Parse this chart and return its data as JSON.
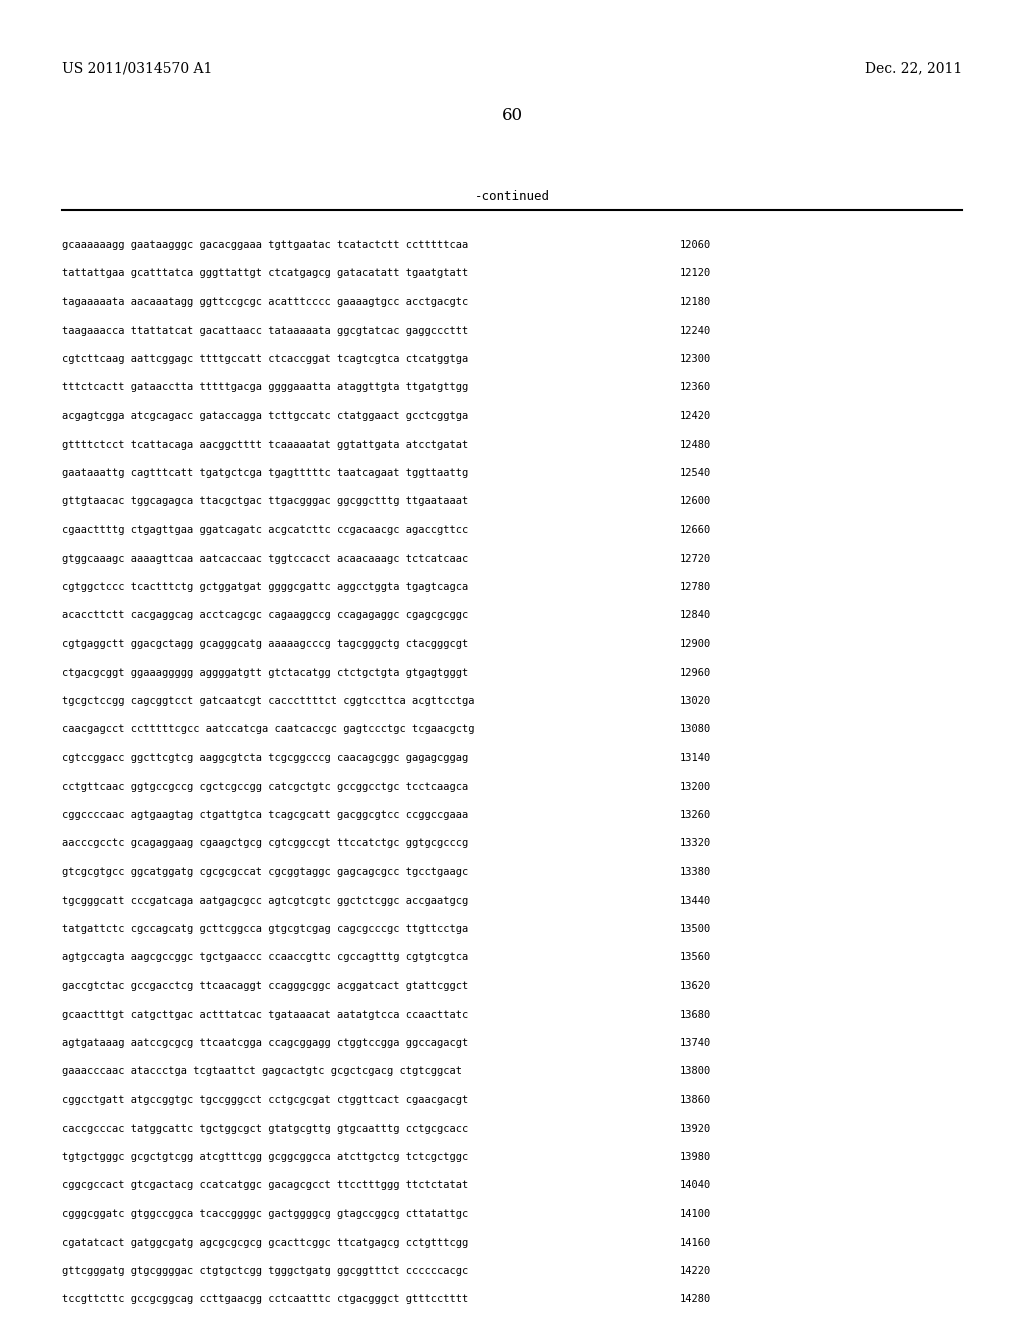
{
  "header_left": "US 2011/0314570 A1",
  "header_right": "Dec. 22, 2011",
  "page_number": "60",
  "continued_label": "-continued",
  "background_color": "#ffffff",
  "text_color": "#000000",
  "sequence_lines": [
    [
      "gcaaaaaagg gaataagggc gacacggaaa tgttgaatac tcatactctt cctttttcaa",
      "12060"
    ],
    [
      "tattattgaa gcatttatca gggttattgt ctcatgagcg gatacatatt tgaatgtatt",
      "12120"
    ],
    [
      "tagaaaaata aacaaatagg ggttccgcgc acatttcccc gaaaagtgcc acctgacgtc",
      "12180"
    ],
    [
      "taagaaacca ttattatcat gacattaacc tataaaaata ggcgtatcac gaggcccttt",
      "12240"
    ],
    [
      "cgtcttcaag aattcggagc ttttgccatt ctcaccggat tcagtcgtca ctcatggtga",
      "12300"
    ],
    [
      "tttctcactt gataacctta tttttgacga ggggaaatta ataggttgta ttgatgttgg",
      "12360"
    ],
    [
      "acgagtcgga atcgcagacc gataccagga tcttgccatc ctatggaact gcctcggtga",
      "12420"
    ],
    [
      "gttttctcct tcattacaga aacggctttt tcaaaaatat ggtattgata atcctgatat",
      "12480"
    ],
    [
      "gaataaattg cagtttcatt tgatgctcga tgagtttttc taatcagaat tggttaattg",
      "12540"
    ],
    [
      "gttgtaacac tggcagagca ttacgctgac ttgacgggac ggcggctttg ttgaataaat",
      "12600"
    ],
    [
      "cgaacttttg ctgagttgaa ggatcagatc acgcatcttc ccgacaacgc agaccgttcc",
      "12660"
    ],
    [
      "gtggcaaagc aaaagttcaa aatcaccaac tggtccacct acaacaaagc tctcatcaac",
      "12720"
    ],
    [
      "cgtggctccc tcactttctg gctggatgat ggggcgattc aggcctggta tgagtcagca",
      "12780"
    ],
    [
      "acaccttctt cacgaggcag acctcagcgc cagaaggccg ccagagaggc cgagcgcggc",
      "12840"
    ],
    [
      "cgtgaggctt ggacgctagg gcagggcatg aaaaagcccg tagcgggctg ctacgggcgt",
      "12900"
    ],
    [
      "ctgacgcggt ggaaaggggg aggggatgtt gtctacatgg ctctgctgta gtgagtgggt",
      "12960"
    ],
    [
      "tgcgctccgg cagcggtcct gatcaatcgt cacccttttct cggtccttca acgttcctga",
      "13020"
    ],
    [
      "caacgagcct cctttttcgcc aatccatcga caatcaccgc gagtccctgc tcgaacgctg",
      "13080"
    ],
    [
      "cgtccggacc ggcttcgtcg aaggcgtcta tcgcggcccg caacagcggc gagagcggag",
      "13140"
    ],
    [
      "cctgttcaac ggtgccgccg cgctcgccgg catcgctgtc gccggcctgc tcctcaagca",
      "13200"
    ],
    [
      "cggccccaac agtgaagtag ctgattgtca tcagcgcatt gacggcgtcc ccggccgaaa",
      "13260"
    ],
    [
      "aacccgcctc gcagaggaag cgaagctgcg cgtcggccgt ttccatctgc ggtgcgcccg",
      "13320"
    ],
    [
      "gtcgcgtgcc ggcatggatg cgcgcgccat cgcggtaggc gagcagcgcc tgcctgaagc",
      "13380"
    ],
    [
      "tgcgggcatt cccgatcaga aatgagcgcc agtcgtcgtc ggctctcggc accgaatgcg",
      "13440"
    ],
    [
      "tatgattctc cgccagcatg gcttcggcca gtgcgtcgag cagcgcccgc ttgttcctga",
      "13500"
    ],
    [
      "agtgccagta aagcgccggc tgctgaaccc ccaaccgttc cgccagtttg cgtgtcgtca",
      "13560"
    ],
    [
      "gaccgtctac gccgacctcg ttcaacaggt ccagggcggc acggatcact gtattcggct",
      "13620"
    ],
    [
      "gcaactttgt catgcttgac actttatcac tgataaacat aatatgtcca ccaacttatc",
      "13680"
    ],
    [
      "agtgataaag aatccgcgcg ttcaatcgga ccagcggagg ctggtccgga ggccagacgt",
      "13740"
    ],
    [
      "gaaacccaac ataccctga tcgtaattct gagcactgtc gcgctcgacg ctgtcggcat",
      "13800"
    ],
    [
      "cggcctgatt atgccggtgc tgccgggcct cctgcgcgat ctggttcact cgaacgacgt",
      "13860"
    ],
    [
      "caccgcccac tatggcattc tgctggcgct gtatgcgttg gtgcaatttg cctgcgcacc",
      "13920"
    ],
    [
      "tgtgctgggc gcgctgtcgg atcgtttcgg gcggcggcca atcttgctcg tctcgctggc",
      "13980"
    ],
    [
      "cggcgccact gtcgactacg ccatcatggc gacagcgcct ttcctttggg ttctctatat",
      "14040"
    ],
    [
      "cgggcggatc gtggccggca tcaccggggc gactggggcg gtagccggcg cttatattgc",
      "14100"
    ],
    [
      "cgatatcact gatggcgatg agcgcgcgcg gcacttcggc ttcatgagcg cctgtttcgg",
      "14160"
    ],
    [
      "gttcgggatg gtgcggggac ctgtgctcgg tgggctgatg ggcggtttct ccccccacgc",
      "14220"
    ],
    [
      "tccgttcttc gccgcggcag ccttgaacgg cctcaatttc ctgacgggct gtttcctttt",
      "14280"
    ]
  ]
}
